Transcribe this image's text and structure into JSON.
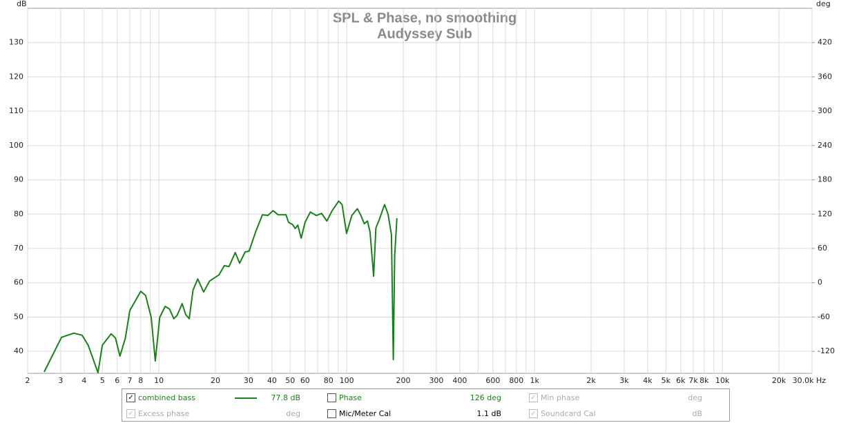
{
  "chart_data": {
    "type": "line",
    "title": "SPL & Phase, no smoothing",
    "subtitle": "Audyssey Sub",
    "y_label": "dB",
    "y2_label": "deg",
    "x_scale": "log",
    "grid": true,
    "x": [
      2.45,
      3.03,
      3.52,
      3.9,
      4.2,
      4.74,
      5.0,
      5.57,
      5.87,
      6.2,
      6.63,
      7.0,
      8.0,
      8.5,
      9.1,
      9.57,
      10.1,
      10.8,
      11.4,
      12.0,
      12.5,
      13.3,
      13.9,
      14.5,
      15.2,
      16.1,
      17.3,
      18.6,
      20.9,
      22.3,
      23.6,
      25.5,
      26.9,
      28.8,
      30.2,
      32.8,
      35.6,
      38,
      40.5,
      43.2,
      47.5,
      49,
      51.4,
      53.2,
      54.9,
      57.2,
      60,
      64,
      68.8,
      73.5,
      78.4,
      83.6,
      90.6,
      94.4,
      99.8,
      106.4,
      114,
      119,
      124,
      129,
      133,
      139,
      143,
      149,
      159,
      166,
      173,
      177,
      180,
      185
    ],
    "series": [
      {
        "name": "combined bass",
        "color": "#1a7f1a",
        "readout": "77.8 dB",
        "checked": true,
        "values": [
          34,
          44.1,
          45.3,
          44.7,
          41.8,
          33.8,
          41.8,
          45.1,
          43.9,
          38.6,
          43.9,
          51.9,
          57.5,
          56.3,
          49.9,
          37.2,
          49.9,
          53.1,
          52.3,
          49.5,
          50.5,
          53.9,
          50.7,
          49.5,
          57.9,
          61.1,
          57.3,
          60.5,
          62.3,
          65,
          64.7,
          68.8,
          65.7,
          69,
          69.2,
          75,
          79.8,
          79.6,
          81,
          79.8,
          79.8,
          77.6,
          77,
          75.8,
          76.8,
          73,
          77.6,
          80.6,
          79.6,
          80.2,
          78,
          81,
          83.8,
          82.8,
          74.4,
          79.6,
          81.6,
          79.6,
          77.2,
          78,
          74.8,
          61.9,
          76,
          78.4,
          82.8,
          80,
          74,
          37.6,
          68,
          78.8
        ]
      }
    ],
    "xlim": [
      2,
      30000
    ],
    "xticks": [
      2,
      3,
      4,
      5,
      6,
      7,
      8,
      10,
      20,
      30,
      40,
      50,
      60,
      80,
      100,
      200,
      300,
      400,
      600,
      800,
      {
        "value": 1000,
        "label": "1k"
      },
      {
        "value": 2000,
        "label": "2k"
      },
      {
        "value": 3000,
        "label": "3k"
      },
      {
        "value": 4000,
        "label": "4k"
      },
      {
        "value": 5000,
        "label": "5k"
      },
      {
        "value": 6000,
        "label": "6k"
      },
      {
        "value": 7000,
        "label": "7k"
      },
      {
        "value": 8000,
        "label": "8k"
      },
      {
        "value": 10000,
        "label": "10k"
      },
      {
        "value": 20000,
        "label": "20k"
      },
      {
        "value": 30000,
        "label": "30.0k Hz"
      }
    ],
    "xminor": [
      9,
      70,
      90,
      500,
      700,
      900,
      9000
    ],
    "ylim": [
      33.6,
      140
    ],
    "yticks": [
      40,
      50,
      60,
      70,
      80,
      90,
      100,
      110,
      120,
      130
    ],
    "y2lim": [
      -158.4,
      480
    ],
    "y2ticks": [
      -120,
      -60,
      0,
      60,
      120,
      180,
      240,
      300,
      360,
      420
    ]
  },
  "legend_panel": [
    {
      "label": "Phase",
      "value": "126 deg",
      "checked": false,
      "enabled": true,
      "color": "#1a7f1a"
    },
    {
      "label": "Min phase",
      "value": "deg",
      "checked": true,
      "enabled": false,
      "color": "#aaaaaa"
    },
    {
      "label": "Excess phase",
      "value": "deg",
      "checked": true,
      "enabled": false,
      "color": "#aaaaaa"
    },
    {
      "label": "Mic/Meter Cal",
      "value": "1.1 dB",
      "checked": false,
      "enabled": true,
      "color": "#000000"
    },
    {
      "label": "Soundcard Cal",
      "value": "dB",
      "checked": true,
      "enabled": false,
      "color": "#aaaaaa"
    }
  ]
}
